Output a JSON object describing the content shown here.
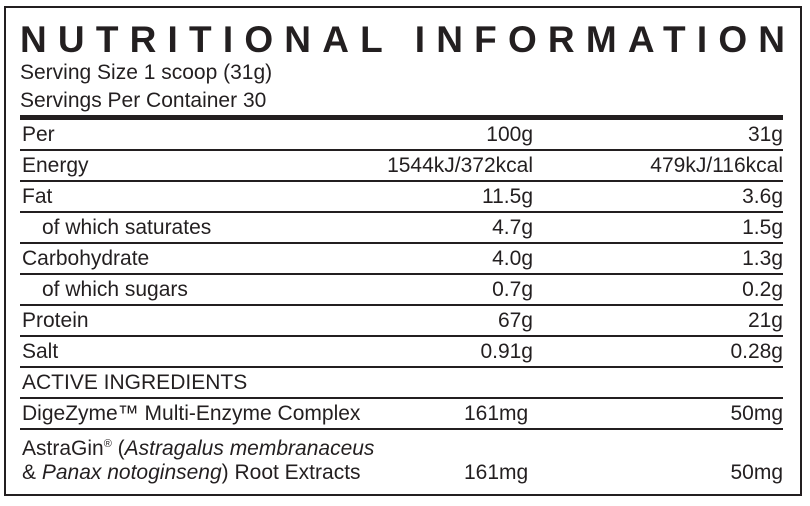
{
  "title": "NUTRITIONAL INFORMATION",
  "serving_size": "Serving Size 1 scoop (31g)",
  "servings_per_container": "Servings Per Container 30",
  "nutrients": [
    {
      "label": "Per",
      "per100": "100g",
      "perServing": "31g",
      "indent": false
    },
    {
      "label": "Energy",
      "per100": "1544kJ/372kcal",
      "perServing": "479kJ/116kcal",
      "indent": false
    },
    {
      "label": "Fat",
      "per100": "11.5g",
      "perServing": "3.6g",
      "indent": false
    },
    {
      "label": "of which saturates",
      "per100": "4.7g",
      "perServing": "1.5g",
      "indent": true
    },
    {
      "label": "Carbohydrate",
      "per100": "4.0g",
      "perServing": "1.3g",
      "indent": false
    },
    {
      "label": "of which sugars",
      "per100": "0.7g",
      "perServing": "0.2g",
      "indent": true
    },
    {
      "label": "Protein",
      "per100": "67g",
      "perServing": "21g",
      "indent": false
    },
    {
      "label": "Salt",
      "per100": "0.91g",
      "perServing": "0.28g",
      "indent": false
    }
  ],
  "active_ingredients": {
    "heading": "ACTIVE INGREDIENTS",
    "items": [
      {
        "label": "DigeZyme™ Multi-Enzyme Complex",
        "per100": "161mg",
        "perServing": "50mg"
      },
      {
        "brand": "AstraGin",
        "reg": "®",
        "open": " (",
        "latin1": "Astragalus membranaceus",
        "amp": "& ",
        "latin2": "Panax notoginseng",
        "rest": ") Root Extracts",
        "per100": "161mg",
        "perServing": "50mg"
      }
    ]
  }
}
